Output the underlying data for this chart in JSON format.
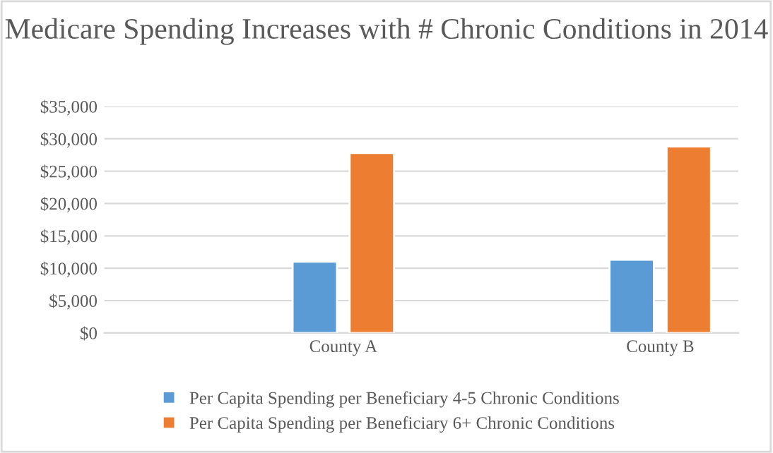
{
  "chart_data": {
    "type": "bar",
    "title": "Medicare Spending Increases with # Chronic Conditions in 2014",
    "categories": [
      "County A",
      "County B"
    ],
    "series": [
      {
        "name": "Per Capita Spending per Beneficiary 4-5 Chronic Conditions",
        "color": "#5b9bd5",
        "values": [
          11000,
          11300
        ]
      },
      {
        "name": "Per Capita Spending per Beneficiary 6+ Chronic Conditions",
        "color": "#ed7d31",
        "values": [
          27800,
          28800
        ]
      }
    ],
    "ylim": [
      0,
      35000
    ],
    "yticks": [
      {
        "value": 0,
        "label": "$0"
      },
      {
        "value": 5000,
        "label": "$5,000"
      },
      {
        "value": 10000,
        "label": "$10,000"
      },
      {
        "value": 15000,
        "label": "$15,000"
      },
      {
        "value": 20000,
        "label": "$20,000"
      },
      {
        "value": 25000,
        "label": "$25,000"
      },
      {
        "value": 30000,
        "label": "$30,000"
      },
      {
        "value": 35000,
        "label": "$35,000"
      }
    ],
    "grid": "y",
    "legend": "bottom"
  }
}
